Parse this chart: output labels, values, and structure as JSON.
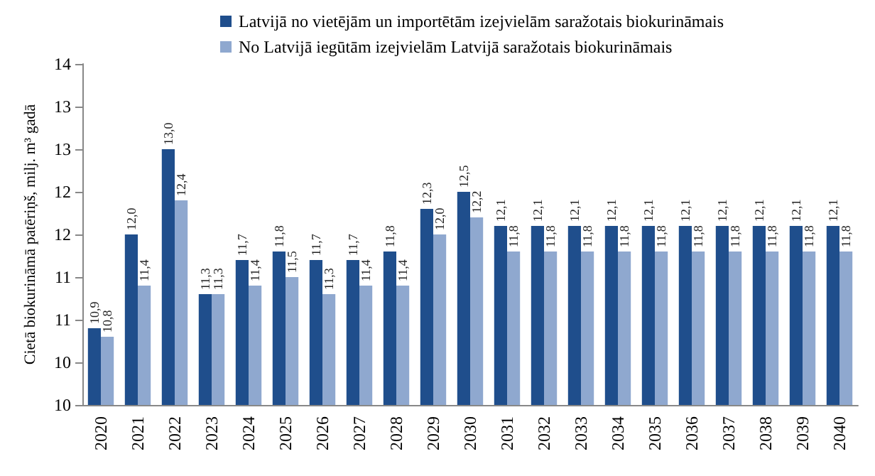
{
  "chart_data": {
    "type": "bar",
    "ylabel": "Cietā biokurināmā patēriņš, milj. m³ gadā",
    "categories": [
      "2020",
      "2021",
      "2022",
      "2023",
      "2024",
      "2025",
      "2026",
      "2027",
      "2028",
      "2029",
      "2030",
      "2031",
      "2032",
      "2033",
      "2034",
      "2035",
      "2036",
      "2037",
      "2038",
      "2039",
      "2040"
    ],
    "series": [
      {
        "name": "Latvijā no vietējām un importētām izejvielām saražotais biokurināmais",
        "color": "#1f4e8c",
        "values": [
          10.9,
          12.0,
          13.0,
          11.3,
          11.7,
          11.8,
          11.7,
          11.7,
          11.8,
          12.3,
          12.5,
          12.1,
          12.1,
          12.1,
          12.1,
          12.1,
          12.1,
          12.1,
          12.1,
          12.1,
          12.1
        ],
        "value_labels": [
          "10,9",
          "12,0",
          "13,0",
          "11,3",
          "11,7",
          "11,8",
          "11,7",
          "11,7",
          "11,8",
          "12,3",
          "12,5",
          "12,1",
          "12,1",
          "12,1",
          "12,1",
          "12,1",
          "12,1",
          "12,1",
          "12,1",
          "12,1",
          "12,1"
        ]
      },
      {
        "name": "No Latvijā iegūtām izejvielām Latvijā saražotais biokurināmais",
        "color": "#8fa8cf",
        "values": [
          10.8,
          11.4,
          12.4,
          11.3,
          11.4,
          11.5,
          11.3,
          11.4,
          11.4,
          12.0,
          12.2,
          11.8,
          11.8,
          11.8,
          11.8,
          11.8,
          11.8,
          11.8,
          11.8,
          11.8,
          11.8
        ],
        "value_labels": [
          "10,8",
          "11,4",
          "12,4",
          "11,3",
          "11,4",
          "11,5",
          "11,3",
          "11,4",
          "11,4",
          "12,0",
          "12,2",
          "11,8",
          "11,8",
          "11,8",
          "11,8",
          "11,8",
          "11,8",
          "11,8",
          "11,8",
          "11,8",
          "11,8"
        ]
      }
    ],
    "ylim": [
      10,
      14
    ],
    "yticks": [
      {
        "value": 10,
        "label": "10"
      },
      {
        "value": 10.5,
        "label": "10"
      },
      {
        "value": 11,
        "label": "11"
      },
      {
        "value": 11.5,
        "label": "11"
      },
      {
        "value": 12,
        "label": "12"
      },
      {
        "value": 12.5,
        "label": "12"
      },
      {
        "value": 13,
        "label": "13"
      },
      {
        "value": 13.5,
        "label": "13"
      },
      {
        "value": 14,
        "label": "14"
      }
    ],
    "grid": false,
    "legend": "top"
  }
}
